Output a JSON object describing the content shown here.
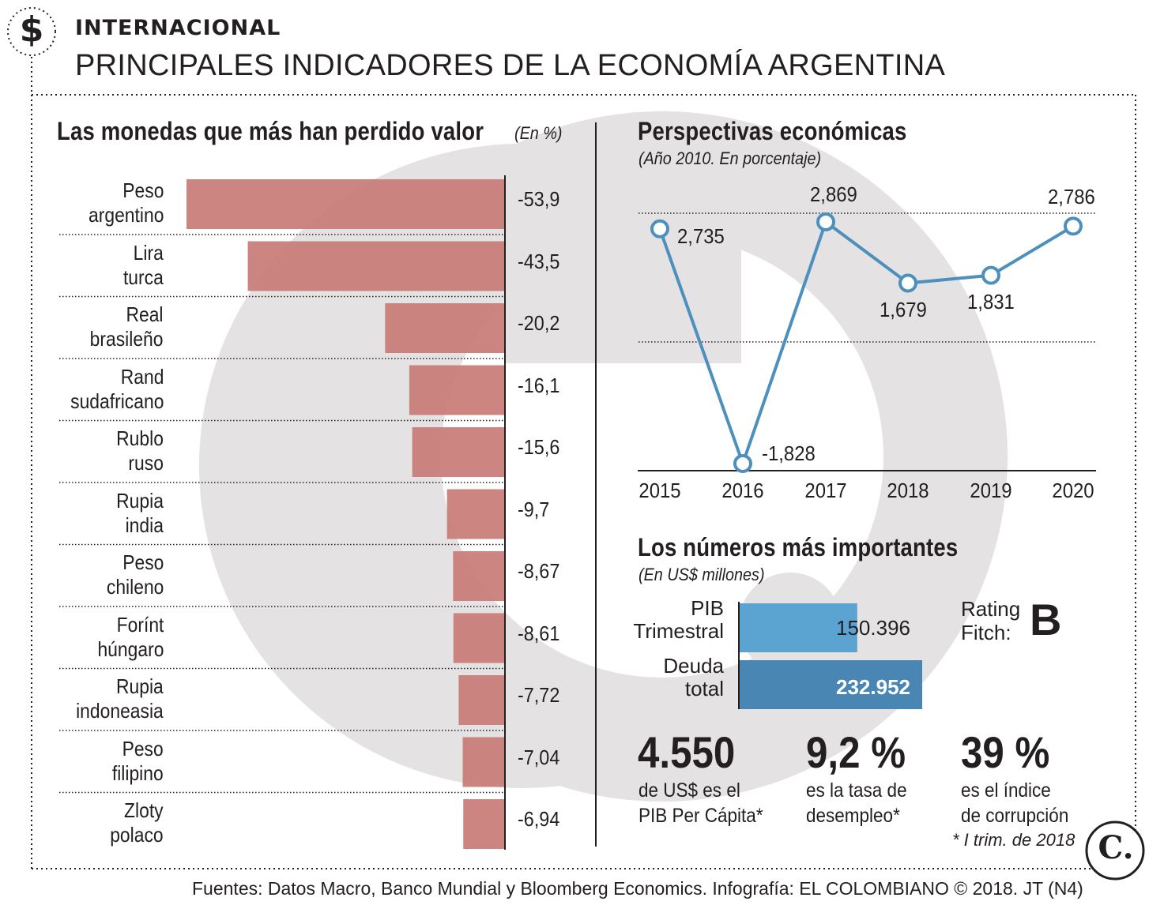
{
  "header": {
    "icon": "dollar-sign-icon",
    "section": "INTERNACIONAL",
    "title": "PRINCIPALES INDICADORES DE LA ECONOMÍA ARGENTINA"
  },
  "currencies": {
    "title": "Las monedas que más han perdido valor",
    "unit": "(En %)",
    "bar_color": "#c97b77",
    "items": [
      {
        "line1": "Peso",
        "line2": "argentino",
        "value_label": "-53,9"
      },
      {
        "line1": "Lira",
        "line2": "turca",
        "value_label": "-43,5"
      },
      {
        "line1": "Real",
        "line2": "brasileño",
        "value_label": "-20,2"
      },
      {
        "line1": "Rand",
        "line2": "sudafricano",
        "value_label": "-16,1"
      },
      {
        "line1": "Rublo",
        "line2": "ruso",
        "value_label": "-15,6"
      },
      {
        "line1": "Rupia",
        "line2": "india",
        "value_label": "-9,7"
      },
      {
        "line1": "Peso",
        "line2": "chileno",
        "value_label": "-8,67"
      },
      {
        "line1": "Forínt",
        "line2": "húngaro",
        "value_label": "-8,61"
      },
      {
        "line1": "Rupia",
        "line2": "indoneasia",
        "value_label": "-7,72"
      },
      {
        "line1": "Peso",
        "line2": "filipino",
        "value_label": "-7,04"
      },
      {
        "line1": "Zloty",
        "line2": "polaco",
        "value_label": "-6,94"
      }
    ]
  },
  "outlook": {
    "title": "Perspectivas económicas",
    "subtitle": "(Año 2010. En porcentaje)",
    "line_color": "#4d8fbd",
    "points": [
      {
        "year": "2015",
        "label": "2,735"
      },
      {
        "year": "2016",
        "label": "-1,828"
      },
      {
        "year": "2017",
        "label": "2,869"
      },
      {
        "year": "2018",
        "label": "1,679"
      },
      {
        "year": "2019",
        "label": "1,831"
      },
      {
        "year": "2020",
        "label": "2,786"
      }
    ]
  },
  "key_numbers": {
    "title": "Los números más importantes",
    "subtitle": "(En US$ millones)",
    "bars": [
      {
        "line1": "PIB",
        "line2": "Trimestral",
        "value_label": "150.396",
        "color": "#5ba4d2"
      },
      {
        "line1": "Deuda",
        "line2": "total",
        "value_label": "232.952",
        "color": "#4a86b4"
      }
    ],
    "rating": {
      "line1": "Rating",
      "line2": "Fitch:",
      "value": "B"
    },
    "stats": [
      {
        "value": "4.550",
        "line1": "de US$ es el",
        "line2": "PIB Per Cápita*"
      },
      {
        "value": "9,2 %",
        "line1": "es la tasa de",
        "line2": "desempleo*"
      },
      {
        "value": "39 %",
        "line1": "es el índice",
        "line2": "de corrupción"
      }
    ],
    "footnote": "* I trim. de 2018"
  },
  "chart_data": [
    {
      "type": "bar",
      "orientation": "horizontal",
      "title": "Las monedas que más han perdido valor",
      "unit": "%",
      "categories": [
        "Peso argentino",
        "Lira turca",
        "Real brasileño",
        "Rand sudafricano",
        "Rublo ruso",
        "Rupia india",
        "Peso chileno",
        "Forínt húngaro",
        "Rupia indoneasia",
        "Peso filipino",
        "Zloty polaco"
      ],
      "values": [
        -53.9,
        -43.5,
        -20.2,
        -16.1,
        -15.6,
        -9.7,
        -8.67,
        -8.61,
        -7.72,
        -7.04,
        -6.94
      ]
    },
    {
      "type": "line",
      "title": "Perspectivas económicas",
      "subtitle": "(Año 2010. En porcentaje)",
      "x": [
        "2015",
        "2016",
        "2017",
        "2018",
        "2019",
        "2020"
      ],
      "y": [
        2.735,
        -1.828,
        2.869,
        1.679,
        1.831,
        2.786
      ],
      "ylim": [
        -1.828,
        2.869
      ]
    },
    {
      "type": "bar",
      "orientation": "horizontal",
      "title": "Los números más importantes",
      "unit": "US$ millones",
      "categories": [
        "PIB Trimestral",
        "Deuda total"
      ],
      "values": [
        150396,
        232952
      ]
    }
  ],
  "footer": {
    "source": "Fuentes: Datos Macro, Banco Mundial y Bloomberg Economics. Infografía: EL COLOMBIANO © 2018. JT (N4)",
    "logo_text": "C."
  }
}
